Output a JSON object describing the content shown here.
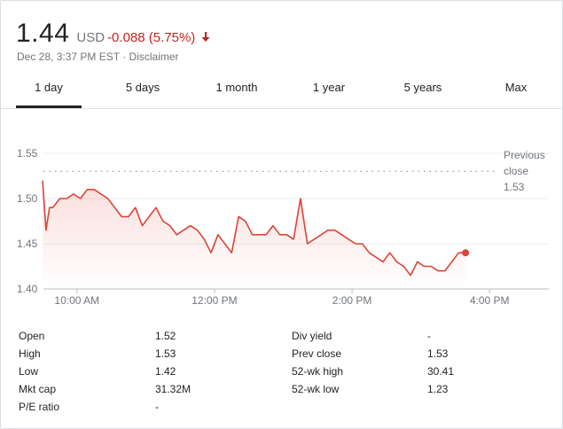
{
  "quote": {
    "price": "1.44",
    "currency": "USD",
    "change": "-0.088 (5.75%)",
    "timestamp": "Dec 28, 3:37 PM EST",
    "separator": "·",
    "disclaimer": "Disclaimer",
    "change_color": "#c5221f"
  },
  "tabs": [
    "1 day",
    "5 days",
    "1 month",
    "1 year",
    "5 years",
    "Max"
  ],
  "active_tab": "1 day",
  "chart_data": {
    "type": "line",
    "x_unit": "time (EST)",
    "y_ticks": [
      "1.55",
      "1.50",
      "1.45",
      "1.40"
    ],
    "x_ticks": [
      "10:00 AM",
      "12:00 PM",
      "2:00 PM",
      "4:00 PM"
    ],
    "ylim": [
      1.4,
      1.55
    ],
    "xlim": [
      "9:30 AM",
      "4:30 PM"
    ],
    "grid": "horizontal",
    "line_color": "#db4437",
    "reference_line": {
      "label_lines": [
        "Previous",
        "close",
        "1.53"
      ],
      "value": 1.53
    },
    "series": [
      {
        "x": [
          "9:30",
          "9:33",
          "9:36",
          "9:39",
          "9:45",
          "9:51",
          "9:57",
          "10:03",
          "10:09",
          "10:15",
          "10:21",
          "10:27",
          "10:33",
          "10:39",
          "10:45",
          "10:51",
          "10:57",
          "11:03",
          "11:09",
          "11:15",
          "11:21",
          "11:27",
          "11:33",
          "11:39",
          "11:45",
          "11:51",
          "11:57",
          "12:03",
          "12:09",
          "12:15",
          "12:21",
          "12:27",
          "12:33",
          "12:39",
          "12:45",
          "12:51",
          "12:57",
          "13:03",
          "13:09",
          "13:15",
          "13:21",
          "13:27",
          "13:33",
          "13:39",
          "13:45",
          "13:51",
          "13:57",
          "14:03",
          "14:09",
          "14:15",
          "14:21",
          "14:27",
          "14:33",
          "14:39",
          "14:45",
          "14:51",
          "14:57",
          "15:03",
          "15:09",
          "15:15",
          "15:21",
          "15:27",
          "15:33",
          "15:39"
        ],
        "values": [
          1.52,
          1.465,
          1.49,
          1.49,
          1.5,
          1.5,
          1.505,
          1.5,
          1.51,
          1.51,
          1.505,
          1.5,
          1.49,
          1.48,
          1.48,
          1.49,
          1.47,
          1.48,
          1.49,
          1.475,
          1.47,
          1.46,
          1.465,
          1.47,
          1.465,
          1.455,
          1.44,
          1.46,
          1.45,
          1.44,
          1.48,
          1.475,
          1.46,
          1.46,
          1.46,
          1.47,
          1.46,
          1.46,
          1.455,
          1.5,
          1.45,
          1.455,
          1.46,
          1.465,
          1.465,
          1.46,
          1.455,
          1.45,
          1.45,
          1.44,
          1.435,
          1.43,
          1.44,
          1.43,
          1.425,
          1.415,
          1.43,
          1.425,
          1.425,
          1.42,
          1.42,
          1.43,
          1.44,
          1.44
        ]
      }
    ]
  },
  "stats": {
    "left": [
      {
        "label": "Open",
        "value": "1.52"
      },
      {
        "label": "High",
        "value": "1.53"
      },
      {
        "label": "Low",
        "value": "1.42"
      },
      {
        "label": "Mkt cap",
        "value": "31.32M"
      },
      {
        "label": "P/E ratio",
        "value": "-"
      }
    ],
    "right": [
      {
        "label": "Div yield",
        "value": "-"
      },
      {
        "label": "Prev close",
        "value": "1.53"
      },
      {
        "label": "52-wk high",
        "value": "30.41"
      },
      {
        "label": "52-wk low",
        "value": "1.23"
      }
    ]
  }
}
